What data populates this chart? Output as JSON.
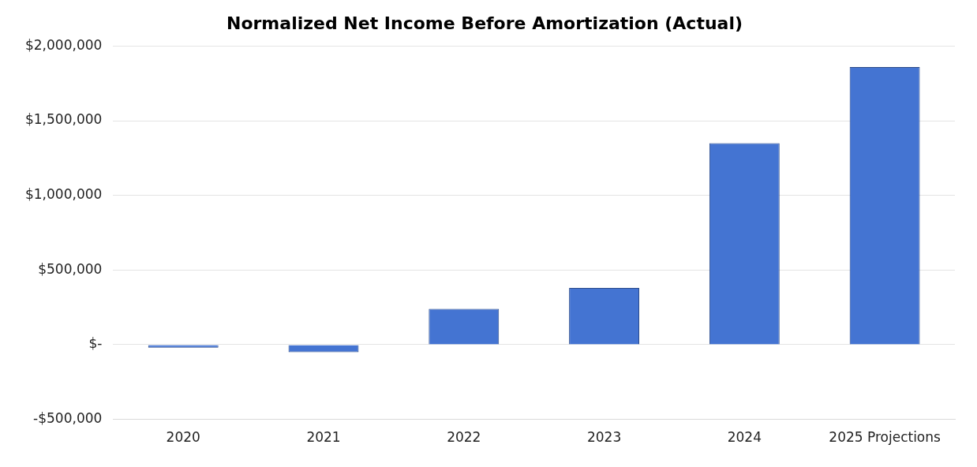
{
  "chart_data": {
    "type": "bar",
    "title": "Normalized Net Income Before Amortization (Actual)",
    "categories": [
      "2020",
      "2021",
      "2022",
      "2023",
      "2024",
      "2025 Projections"
    ],
    "values": [
      -20000,
      -50000,
      240000,
      380000,
      1350000,
      1860000
    ],
    "color": "#4474d2",
    "ylim": [
      -500000,
      2000000
    ],
    "yticks": [
      {
        "value": -500000,
        "label": "-$500,000"
      },
      {
        "value": 0,
        "label": "$-"
      },
      {
        "value": 500000,
        "label": "$500,000"
      },
      {
        "value": 1000000,
        "label": "$1,000,000"
      },
      {
        "value": 1500000,
        "label": "$1,500,000"
      },
      {
        "value": 2000000,
        "label": "$2,000,000"
      }
    ],
    "grid": "y",
    "legend": false
  }
}
